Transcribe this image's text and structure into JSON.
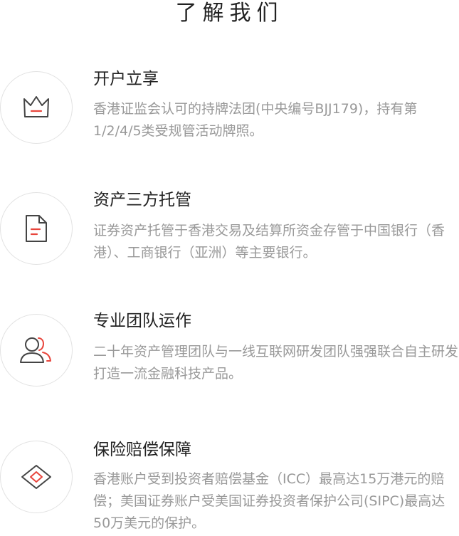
{
  "page": {
    "title": "了解我们"
  },
  "features": [
    {
      "icon": "crown-icon",
      "title": "开户立享",
      "desc": "香港证监会认可的持牌法团(中央编号BJJ179)，持有第1/2/4/5类受规管活动牌照。"
    },
    {
      "icon": "document-icon",
      "title": "资产三方托管",
      "desc": "证券资产托管于香港交易及结算所资金存管于中国银行（香港）、工商银行（亚洲）等主要银行。"
    },
    {
      "icon": "team-icon",
      "title": "专业团队运作",
      "desc": "二十年资产管理团队与一线互联网研发团队强强联合自主研发打造一流金融科技产品。"
    },
    {
      "icon": "diamond-icon",
      "title": "保险赔偿保障",
      "desc": "香港账户受到投资者赔偿基金（ICC）最高达15万港元的赔偿；美国证券账户受美国证券投资者保护公司(SIPC)最高达50万美元的保护。"
    }
  ],
  "colors": {
    "accent": "#e8453c",
    "icon_stroke": "#444444",
    "circle_border": "#e2e2e2",
    "title_text": "#222222",
    "desc_text": "#999999"
  }
}
